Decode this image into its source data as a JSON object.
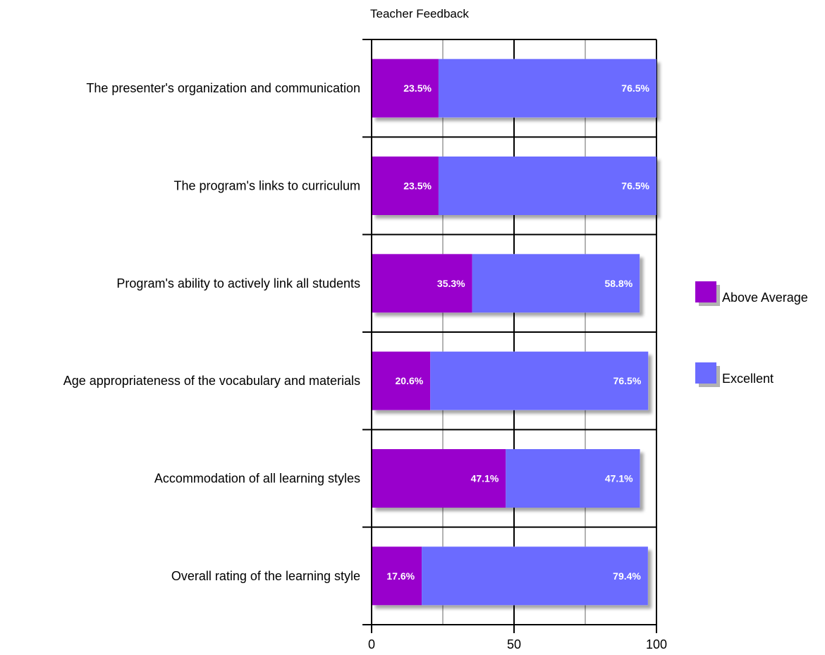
{
  "chart_data": {
    "type": "bar",
    "orientation": "horizontal",
    "stacked": true,
    "title": "Teacher Feedback",
    "xlabel": "",
    "ylabel": "",
    "xlim": [
      0,
      100
    ],
    "x_ticks": [
      0,
      50,
      100
    ],
    "grid": true,
    "legend_position": "right",
    "categories": [
      "The presenter's  organization and communication",
      "The program's links to curriculum",
      "Program's ability to actively link all students",
      "Age appropriateness  of the vocabulary and  materials",
      "Accommodation of  all learning styles",
      "Overall rating of the learning style"
    ],
    "series": [
      {
        "name": "Above Average",
        "color": "#9900CC",
        "values": [
          23.5,
          23.5,
          35.3,
          20.6,
          47.1,
          17.6
        ],
        "labels": [
          "23.5%",
          "23.5%",
          "35.3%",
          "20.6%",
          "47.1%",
          "17.6%"
        ]
      },
      {
        "name": "Excellent",
        "color": "#6B6BFF",
        "values": [
          76.5,
          76.5,
          58.8,
          76.5,
          47.1,
          79.4
        ],
        "labels": [
          "76.5%",
          "76.5%",
          "58.8%",
          "76.5%",
          "47.1%",
          "79.4%"
        ]
      }
    ]
  }
}
